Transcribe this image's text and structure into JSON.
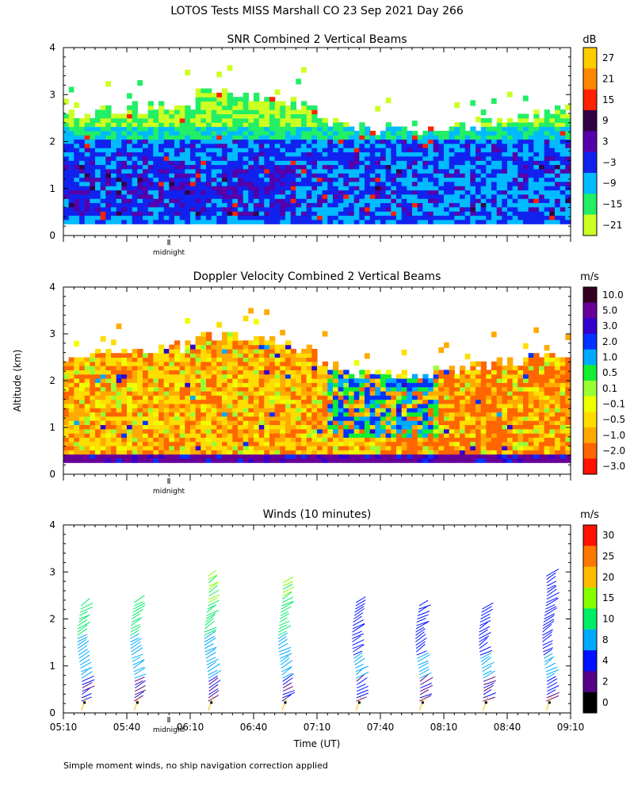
{
  "figure_title": "LOTOS Tests MISS Marshall CO  23 Sep 2021 Day 266",
  "footer_note": "Simple moment winds, no ship navigation correction applied",
  "shared": {
    "y_axis_label": "Altitude (km)",
    "y_ticks": [
      "0",
      "1",
      "2",
      "3",
      "4"
    ],
    "x_axis_label": "Time (UT)",
    "x_ticks": [
      "05:10",
      "05:40",
      "06:10",
      "06:40",
      "07:10",
      "07:40",
      "08:10",
      "08:40",
      "09:10"
    ],
    "midnight_label": "midnight"
  },
  "chart_data": [
    {
      "type": "heatmap",
      "title": "SNR Combined 2 Vertical Beams",
      "colorbar_unit": "dB",
      "colorbar_labels": [
        "27",
        "21",
        "15",
        "9",
        "3",
        "−3",
        "−9",
        "−15",
        "−21"
      ],
      "colorbar_colors": [
        "#ffcc00",
        "#ff8800",
        "#ff2200",
        "#330044",
        "#5500aa",
        "#1122ee",
        "#00bbff",
        "#22ee66",
        "#ccff22"
      ],
      "xlim": [
        "05:10",
        "09:10"
      ],
      "ylim": [
        0,
        4
      ]
    },
    {
      "type": "heatmap",
      "title": "Doppler Velocity Combined 2 Vertical Beams",
      "colorbar_unit": "m/s",
      "colorbar_labels": [
        "10.0",
        "5.0",
        "3.0",
        "2.0",
        "1.0",
        "0.5",
        "0.1",
        "−0.1",
        "−0.5",
        "−1.0",
        "−2.0",
        "−3.0"
      ],
      "colorbar_colors": [
        "#330022",
        "#660099",
        "#3300cc",
        "#0033ff",
        "#00aaff",
        "#11ee33",
        "#99ff33",
        "#eeff00",
        "#ffdd00",
        "#ffaa00",
        "#ff6600",
        "#ff1100"
      ],
      "xlim": [
        "05:10",
        "09:10"
      ],
      "ylim": [
        0,
        4
      ]
    },
    {
      "type": "scatter",
      "title": "Winds (10 minutes)",
      "colorbar_unit": "m/s",
      "colorbar_labels": [
        "30",
        "25",
        "20",
        "15",
        "10",
        "8",
        "4",
        "2",
        "0"
      ],
      "colorbar_colors": [
        "#ff1100",
        "#ff7700",
        "#ffbb00",
        "#88ff00",
        "#00ee66",
        "#00aaff",
        "#0011ff",
        "#550088",
        "#000000"
      ],
      "xlim": [
        "05:10",
        "09:10"
      ],
      "ylim": [
        0,
        4
      ],
      "profile_times": [
        "05:20",
        "05:45",
        "06:20",
        "06:55",
        "07:30",
        "08:00",
        "08:30",
        "09:00"
      ]
    }
  ]
}
